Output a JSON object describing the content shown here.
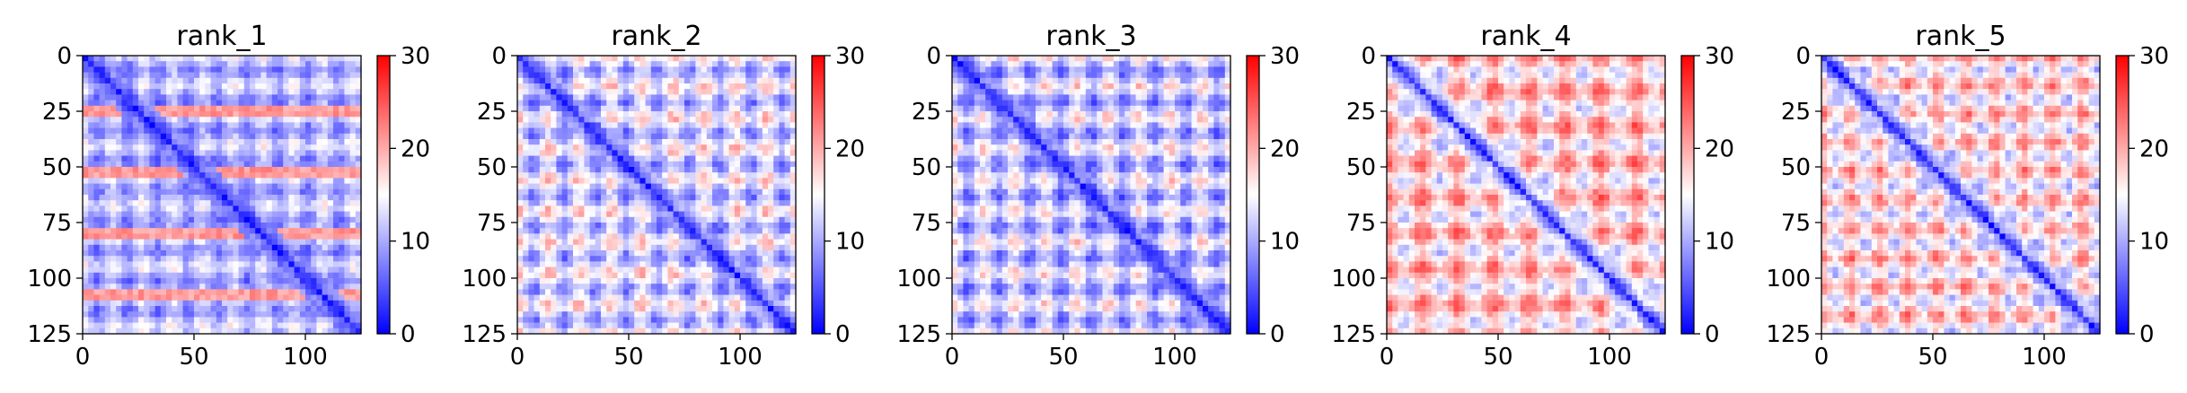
{
  "chart_data": [
    {
      "type": "heatmap",
      "title": "rank_1",
      "xlabel": "",
      "ylabel": "",
      "x_range": [
        0,
        125
      ],
      "y_range": [
        0,
        125
      ],
      "x_ticks": [
        "0",
        "50",
        "100"
      ],
      "y_ticks": [
        "0",
        "25",
        "50",
        "75",
        "100",
        "125"
      ],
      "colorbar": {
        "range": [
          0,
          30
        ],
        "ticks": [
          "0",
          "10",
          "20",
          "30"
        ],
        "colormap": "bwr"
      },
      "pattern": {
        "near_diagonal_value": 2,
        "background_value": 11,
        "checker_amplitude": 5,
        "period": 27,
        "stripe_rows": [
          25,
          52,
          80,
          107
        ],
        "stripe_value": 21
      }
    },
    {
      "type": "heatmap",
      "title": "rank_2",
      "xlabel": "",
      "ylabel": "",
      "x_range": [
        0,
        125
      ],
      "y_range": [
        0,
        125
      ],
      "x_ticks": [
        "0",
        "50",
        "100"
      ],
      "y_ticks": [
        "0",
        "25",
        "50",
        "75",
        "100",
        "125"
      ],
      "colorbar": {
        "range": [
          0,
          30
        ],
        "ticks": [
          "0",
          "10",
          "20",
          "30"
        ],
        "colormap": "bwr"
      },
      "pattern": {
        "near_diagonal_value": 2,
        "background_value": 13,
        "checker_amplitude": 7,
        "period": 28,
        "stripe_rows": [],
        "stripe_value": 20
      }
    },
    {
      "type": "heatmap",
      "title": "rank_3",
      "xlabel": "",
      "ylabel": "",
      "x_range": [
        0,
        125
      ],
      "y_range": [
        0,
        125
      ],
      "x_ticks": [
        "0",
        "50",
        "100"
      ],
      "y_ticks": [
        "0",
        "25",
        "50",
        "75",
        "100",
        "125"
      ],
      "colorbar": {
        "range": [
          0,
          30
        ],
        "ticks": [
          "0",
          "10",
          "20",
          "30"
        ],
        "colormap": "bwr"
      },
      "pattern": {
        "near_diagonal_value": 2,
        "background_value": 12,
        "checker_amplitude": 7,
        "period": 28,
        "stripe_rows": [],
        "stripe_value": 20
      }
    },
    {
      "type": "heatmap",
      "title": "rank_4",
      "xlabel": "",
      "ylabel": "",
      "x_range": [
        0,
        125
      ],
      "y_range": [
        0,
        125
      ],
      "x_ticks": [
        "0",
        "50",
        "100"
      ],
      "y_ticks": [
        "0",
        "25",
        "50",
        "75",
        "100",
        "125"
      ],
      "colorbar": {
        "range": [
          0,
          30
        ],
        "ticks": [
          "0",
          "10",
          "20",
          "30"
        ],
        "colormap": "bwr"
      },
      "pattern": {
        "near_diagonal_value": 2,
        "background_value": 18,
        "checker_amplitude": 7,
        "period": 32,
        "stripe_rows": [],
        "stripe_value": 24
      }
    },
    {
      "type": "heatmap",
      "title": "rank_5",
      "xlabel": "",
      "ylabel": "",
      "x_range": [
        0,
        125
      ],
      "y_range": [
        0,
        125
      ],
      "x_ticks": [
        "0",
        "50",
        "100"
      ],
      "y_ticks": [
        "0",
        "25",
        "50",
        "75",
        "100",
        "125"
      ],
      "colorbar": {
        "range": [
          0,
          30
        ],
        "ticks": [
          "0",
          "10",
          "20",
          "30"
        ],
        "colormap": "bwr"
      },
      "pattern": {
        "near_diagonal_value": 2,
        "background_value": 17,
        "checker_amplitude": 7,
        "period": 26,
        "stripe_rows": [],
        "stripe_value": 24
      }
    }
  ]
}
